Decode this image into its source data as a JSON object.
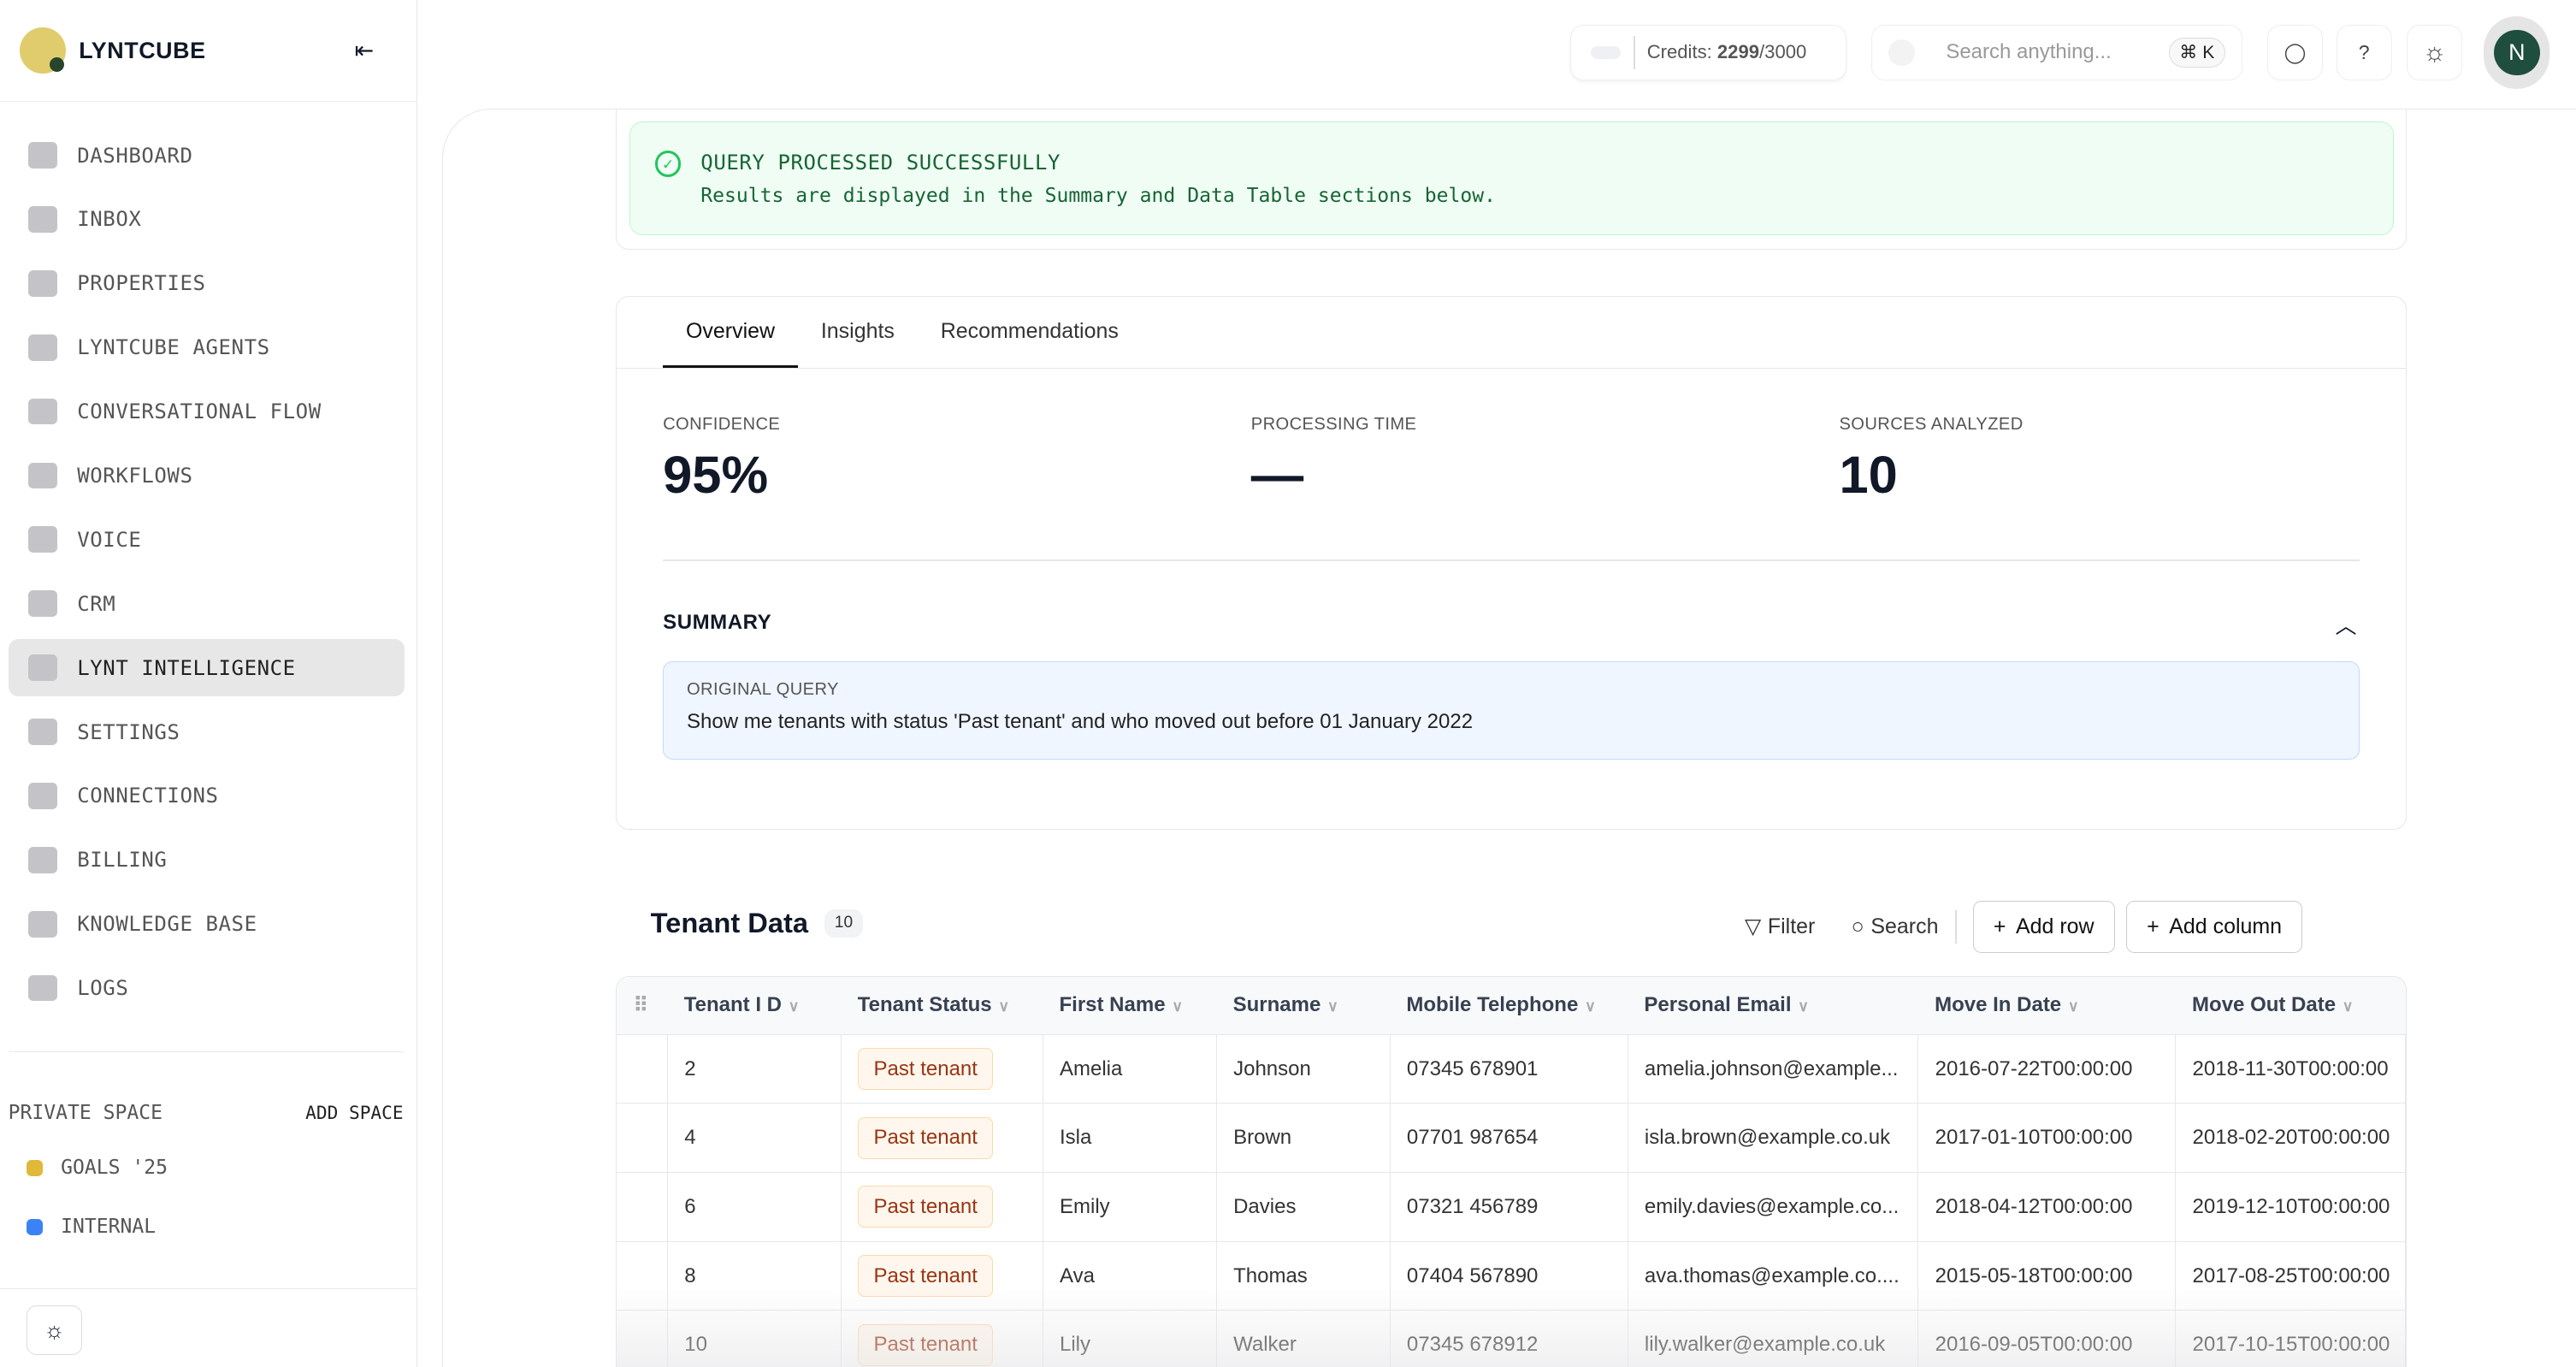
{
  "brand": "LYNTCUBE",
  "sidebar": {
    "items": [
      {
        "label": "DASHBOARD"
      },
      {
        "label": "INBOX"
      },
      {
        "label": "PROPERTIES"
      },
      {
        "label": "LYNTCUBE AGENTS"
      },
      {
        "label": "CONVERSATIONAL FLOW"
      },
      {
        "label": "WORKFLOWS"
      },
      {
        "label": "VOICE"
      },
      {
        "label": "CRM"
      },
      {
        "label": "LYNT INTELLIGENCE",
        "active": true
      },
      {
        "label": "SETTINGS"
      },
      {
        "label": "CONNECTIONS"
      },
      {
        "label": "BILLING"
      },
      {
        "label": "KNOWLEDGE BASE"
      },
      {
        "label": "LOGS"
      }
    ],
    "space_title": "PRIVATE SPACE",
    "add_space": "ADD SPACE",
    "spaces": [
      {
        "label": "GOALS '25",
        "color": "#e0b83a"
      },
      {
        "label": "INTERNAL",
        "color": "#3b82f6"
      }
    ]
  },
  "topbar": {
    "credits_label": "Credits:",
    "credits_used": "2299",
    "credits_total": "/3000",
    "search_placeholder": "Search anything...",
    "shortcut": "⌘ K",
    "avatar": "N"
  },
  "success": {
    "title": "QUERY PROCESSED SUCCESSFULLY",
    "subtitle": "Results are displayed in the Summary and Data Table sections below."
  },
  "tabs": [
    "Overview",
    "Insights",
    "Recommendations"
  ],
  "stats": [
    {
      "label": "CONFIDENCE",
      "value": "95%"
    },
    {
      "label": "PROCESSING TIME",
      "value": "—"
    },
    {
      "label": "SOURCES ANALYZED",
      "value": "10"
    }
  ],
  "summary": {
    "title": "SUMMARY",
    "query_label": "ORIGINAL QUERY",
    "query": "Show me tenants with status 'Past tenant' and who moved out before 01 January 2022"
  },
  "table": {
    "title": "Tenant Data",
    "count": "10",
    "filter": "Filter",
    "search": "Search",
    "add_row": "Add row",
    "add_column": "Add column",
    "columns": [
      "Tenant I D",
      "Tenant Status",
      "First Name",
      "Surname",
      "Mobile Telephone",
      "Personal Email",
      "Move In Date",
      "Move Out Date"
    ],
    "rows": [
      [
        "2",
        "Past tenant",
        "Amelia",
        "Johnson",
        "07345 678901",
        "amelia.johnson@example...",
        "2016-07-22T00:00:00",
        "2018-11-30T00:00:00"
      ],
      [
        "4",
        "Past tenant",
        "Isla",
        "Brown",
        "07701 987654",
        "isla.brown@example.co.uk",
        "2017-01-10T00:00:00",
        "2018-02-20T00:00:00"
      ],
      [
        "6",
        "Past tenant",
        "Emily",
        "Davies",
        "07321 456789",
        "emily.davies@example.co...",
        "2018-04-12T00:00:00",
        "2019-12-10T00:00:00"
      ],
      [
        "8",
        "Past tenant",
        "Ava",
        "Thomas",
        "07404 567890",
        "ava.thomas@example.co....",
        "2015-05-18T00:00:00",
        "2017-08-25T00:00:00"
      ],
      [
        "10",
        "Past tenant",
        "Lily",
        "Walker",
        "07345 678912",
        "lily.walker@example.co.uk",
        "2016-09-05T00:00:00",
        "2017-10-15T00:00:00"
      ]
    ]
  }
}
